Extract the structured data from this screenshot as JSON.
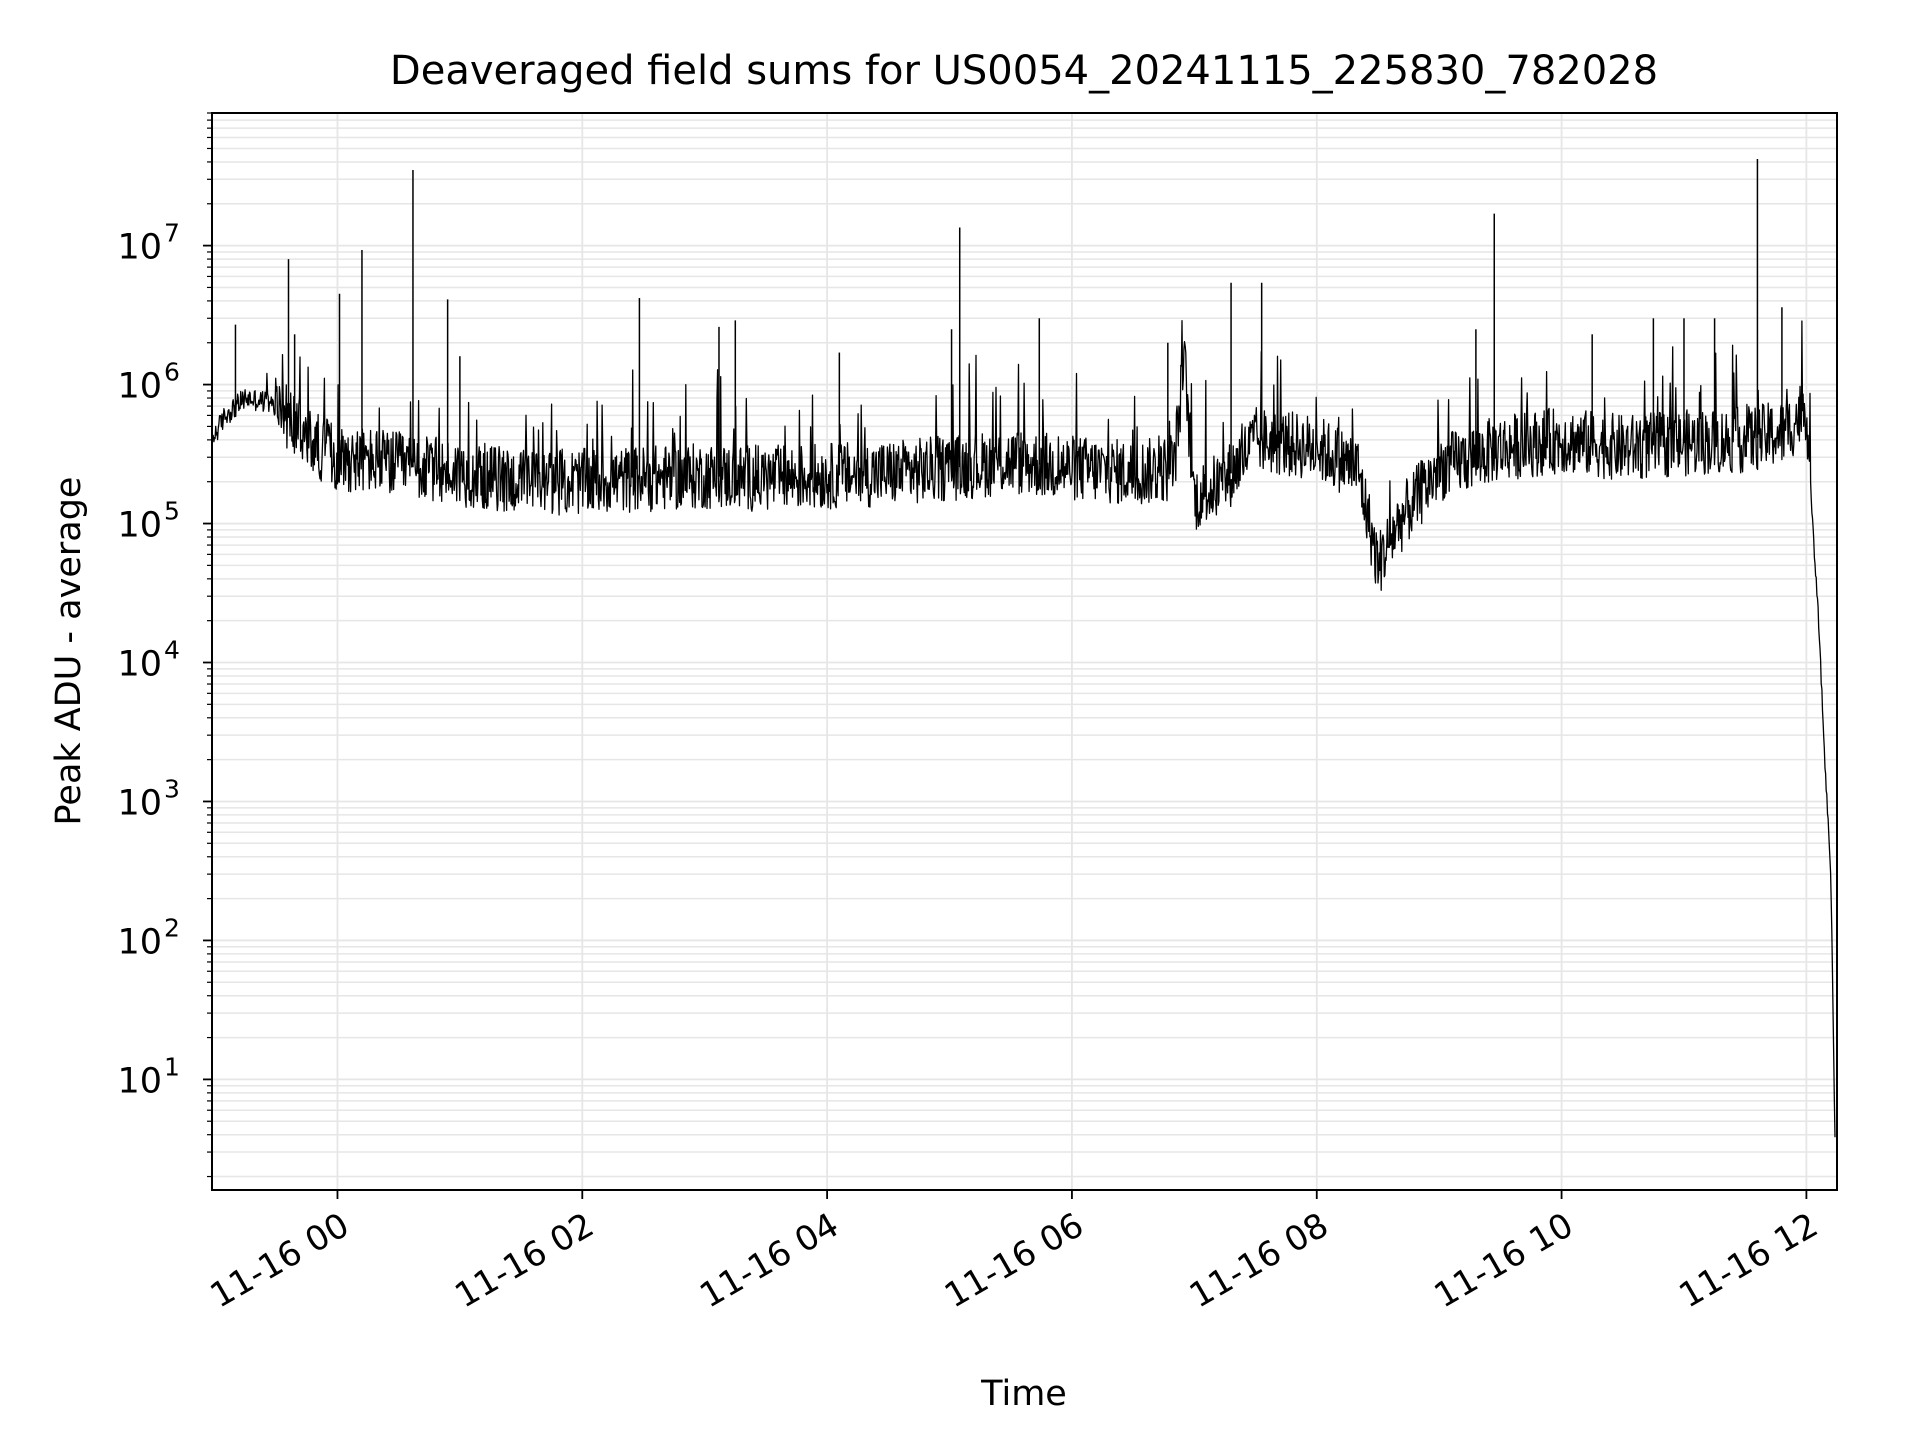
{
  "chart_data": {
    "type": "line",
    "title": "Deaveraged field sums for US0054_20241115_225830_782028",
    "xlabel": "Time",
    "ylabel": "Peak ADU - average",
    "yscale": "log",
    "ylim": [
      1.6,
      90000000
    ],
    "xlim": [
      "2024-11-15T22:58:30",
      "2024-11-16T12:15:00"
    ],
    "x_tick_labels": [
      "11-16 00",
      "11-16 02",
      "11-16 04",
      "11-16 06",
      "11-16 08",
      "11-16 10",
      "11-16 12"
    ],
    "x_ticks": [
      "2024-11-16T00:00",
      "2024-11-16T02:00",
      "2024-11-16T04:00",
      "2024-11-16T06:00",
      "2024-11-16T08:00",
      "2024-11-16T10:00",
      "2024-11-16T12:00"
    ],
    "y_ticks": [
      10,
      100,
      1000,
      10000,
      100000,
      1000000,
      10000000
    ],
    "y_tick_labels": [
      {
        "base": "10",
        "exp": "1"
      },
      {
        "base": "10",
        "exp": "2"
      },
      {
        "base": "10",
        "exp": "3"
      },
      {
        "base": "10",
        "exp": "4"
      },
      {
        "base": "10",
        "exp": "5"
      },
      {
        "base": "10",
        "exp": "6"
      },
      {
        "base": "10",
        "exp": "7"
      }
    ],
    "grid": true,
    "line_color": "#000000",
    "grid_color": "#e6e6e6",
    "series": [
      {
        "x": [
          "2024-11-15T22:58:30",
          "2024-11-15T23:05",
          "2024-11-15T23:15",
          "2024-11-15T23:25",
          "2024-11-15T23:35",
          "2024-11-15T23:45",
          "2024-11-16T00:00",
          "2024-11-16T00:20",
          "2024-11-16T00:40",
          "2024-11-16T01:00",
          "2024-11-16T01:30",
          "2024-11-16T02:00",
          "2024-11-16T02:30",
          "2024-11-16T03:00",
          "2024-11-16T03:30",
          "2024-11-16T04:00",
          "2024-11-16T04:30",
          "2024-11-16T05:00",
          "2024-11-16T05:30",
          "2024-11-16T06:00",
          "2024-11-16T06:30",
          "2024-11-16T06:50",
          "2024-11-16T06:55",
          "2024-11-16T07:00",
          "2024-11-16T07:15",
          "2024-11-16T07:30",
          "2024-11-16T08:00",
          "2024-11-16T08:20",
          "2024-11-16T08:30",
          "2024-11-16T08:40",
          "2024-11-16T09:00",
          "2024-11-16T09:30",
          "2024-11-16T10:00",
          "2024-11-16T10:30",
          "2024-11-16T11:00",
          "2024-11-16T11:30",
          "2024-11-16T11:50",
          "2024-11-16T12:00",
          "2024-11-16T12:03",
          "2024-11-16T12:06",
          "2024-11-16T12:09",
          "2024-11-16T12:12",
          "2024-11-16T12:14"
        ],
        "y": [
          400000,
          600000,
          800000,
          750000,
          600000,
          400000,
          300000,
          280000,
          250000,
          230000,
          200000,
          200000,
          210000,
          220000,
          210000,
          220000,
          230000,
          250000,
          280000,
          250000,
          230000,
          250000,
          1500000,
          150000,
          200000,
          400000,
          350000,
          250000,
          50000,
          100000,
          250000,
          350000,
          400000,
          350000,
          380000,
          400000,
          450000,
          700000,
          100000,
          20000,
          2000,
          300,
          4
        ],
        "spikes": [
          {
            "x": "2024-11-15T23:10",
            "y": 2700000
          },
          {
            "x": "2024-11-15T23:36",
            "y": 8000000
          },
          {
            "x": "2024-11-15T23:39",
            "y": 2300000
          },
          {
            "x": "2024-11-16T00:01",
            "y": 4500000
          },
          {
            "x": "2024-11-16T00:12",
            "y": 9300000
          },
          {
            "x": "2024-11-16T00:37",
            "y": 35000000
          },
          {
            "x": "2024-11-16T00:54",
            "y": 4100000
          },
          {
            "x": "2024-11-16T01:00",
            "y": 1600000
          },
          {
            "x": "2024-11-16T02:28",
            "y": 4200000
          },
          {
            "x": "2024-11-16T03:07",
            "y": 2600000
          },
          {
            "x": "2024-11-16T03:15",
            "y": 2900000
          },
          {
            "x": "2024-11-16T04:06",
            "y": 1700000
          },
          {
            "x": "2024-11-16T05:01",
            "y": 2500000
          },
          {
            "x": "2024-11-16T05:05",
            "y": 13500000
          },
          {
            "x": "2024-11-16T05:44",
            "y": 3000000
          },
          {
            "x": "2024-11-16T06:47",
            "y": 2000000
          },
          {
            "x": "2024-11-16T07:18",
            "y": 5400000
          },
          {
            "x": "2024-11-16T07:33",
            "y": 5400000
          },
          {
            "x": "2024-11-16T09:27",
            "y": 17000000
          },
          {
            "x": "2024-11-16T09:18",
            "y": 2500000
          },
          {
            "x": "2024-11-16T10:15",
            "y": 2300000
          },
          {
            "x": "2024-11-16T10:45",
            "y": 3000000
          },
          {
            "x": "2024-11-16T11:00",
            "y": 3000000
          },
          {
            "x": "2024-11-16T11:15",
            "y": 3000000
          },
          {
            "x": "2024-11-16T11:36",
            "y": 42000000
          },
          {
            "x": "2024-11-16T11:48",
            "y": 3600000
          }
        ]
      }
    ]
  }
}
